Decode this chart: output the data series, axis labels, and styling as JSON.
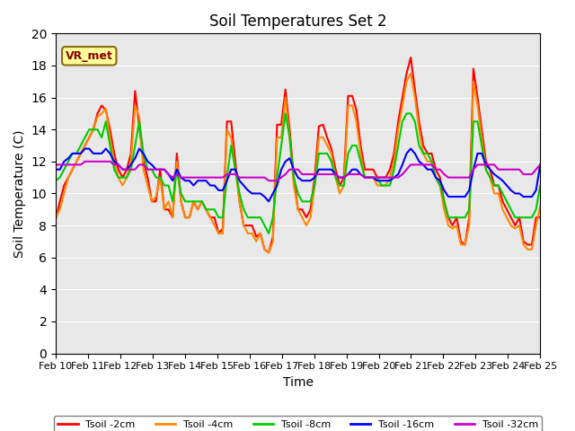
{
  "title": "Soil Temperatures Set 2",
  "xlabel": "Time",
  "ylabel": "Soil Temperature (C)",
  "annotation": "VR_met",
  "ylim": [
    0,
    20
  ],
  "yticks": [
    0,
    2,
    4,
    6,
    8,
    10,
    12,
    14,
    16,
    18,
    20
  ],
  "xtick_labels": [
    "Feb 10",
    "Feb 11",
    "Feb 12",
    "Feb 13",
    "Feb 14",
    "Feb 15",
    "Feb 16",
    "Feb 17",
    "Feb 18",
    "Feb 19",
    "Feb 20",
    "Feb 21",
    "Feb 22",
    "Feb 23",
    "Feb 24",
    "Feb 25"
  ],
  "background_color": "#e8e8e8",
  "series": {
    "Tsoil -2cm": {
      "color": "#ff0000",
      "lw": 1.5
    },
    "Tsoil -4cm": {
      "color": "#ff8800",
      "lw": 1.5
    },
    "Tsoil -8cm": {
      "color": "#00cc00",
      "lw": 1.5
    },
    "Tsoil -16cm": {
      "color": "#0000ff",
      "lw": 1.5
    },
    "Tsoil -32cm": {
      "color": "#cc00cc",
      "lw": 1.5
    }
  },
  "tsoil_2cm": [
    8.4,
    9.5,
    10.5,
    11.0,
    11.5,
    12.0,
    12.5,
    13.0,
    13.5,
    14.0,
    15.0,
    15.5,
    15.2,
    14.0,
    12.5,
    11.5,
    11.0,
    11.5,
    12.5,
    16.4,
    14.2,
    12.0,
    11.0,
    9.5,
    9.5,
    11.5,
    9.0,
    9.0,
    8.5,
    12.5,
    9.5,
    8.5,
    8.5,
    9.5,
    9.0,
    9.5,
    9.0,
    8.5,
    8.5,
    7.5,
    7.8,
    14.5,
    14.5,
    12.0,
    9.5,
    8.0,
    8.0,
    8.0,
    7.3,
    7.5,
    6.5,
    6.3,
    7.3,
    14.3,
    14.3,
    16.5,
    14.0,
    11.0,
    9.0,
    9.0,
    8.5,
    9.0,
    11.0,
    14.2,
    14.3,
    13.5,
    12.8,
    11.5,
    10.5,
    11.0,
    16.1,
    16.1,
    15.2,
    13.0,
    11.5,
    11.5,
    11.5,
    11.0,
    11.0,
    11.0,
    11.5,
    12.5,
    14.5,
    16.0,
    17.5,
    18.5,
    16.5,
    14.5,
    13.0,
    12.5,
    12.5,
    11.5,
    11.0,
    9.5,
    8.5,
    8.0,
    8.5,
    7.0,
    6.8,
    8.5,
    17.8,
    16.0,
    14.0,
    12.0,
    11.5,
    10.5,
    10.5,
    9.5,
    9.0,
    8.5,
    8.0,
    8.5,
    7.0,
    6.8,
    6.8,
    8.5,
    8.5
  ],
  "tsoil_4cm": [
    8.5,
    9.0,
    10.0,
    11.0,
    11.5,
    12.0,
    12.5,
    13.0,
    13.5,
    14.0,
    14.8,
    15.0,
    15.3,
    13.5,
    12.0,
    11.0,
    10.5,
    11.0,
    12.0,
    15.5,
    14.8,
    11.5,
    10.5,
    9.5,
    9.8,
    11.0,
    9.0,
    9.5,
    8.5,
    12.0,
    9.5,
    8.5,
    8.5,
    9.5,
    9.0,
    9.5,
    9.0,
    8.5,
    8.0,
    7.5,
    7.5,
    14.0,
    13.5,
    11.5,
    9.5,
    8.0,
    7.5,
    7.5,
    7.0,
    7.5,
    6.5,
    6.3,
    7.0,
    13.5,
    13.5,
    16.0,
    13.5,
    10.5,
    9.0,
    8.5,
    8.0,
    8.5,
    10.5,
    13.5,
    13.5,
    13.0,
    12.5,
    11.0,
    10.0,
    10.5,
    15.5,
    15.5,
    14.5,
    12.5,
    11.0,
    11.0,
    11.0,
    10.5,
    10.5,
    10.5,
    11.0,
    12.0,
    14.0,
    15.5,
    17.0,
    17.5,
    16.0,
    14.0,
    12.5,
    12.0,
    12.0,
    11.0,
    10.5,
    9.0,
    8.0,
    7.8,
    8.0,
    6.8,
    6.8,
    8.0,
    17.0,
    15.5,
    13.5,
    11.5,
    11.0,
    10.0,
    10.0,
    9.0,
    8.5,
    8.0,
    7.8,
    8.0,
    6.8,
    6.5,
    6.5,
    8.0,
    9.2
  ],
  "tsoil_8cm": [
    10.8,
    11.0,
    11.5,
    12.0,
    12.5,
    12.5,
    13.0,
    13.5,
    14.0,
    14.0,
    14.0,
    13.5,
    14.5,
    13.0,
    11.5,
    11.0,
    11.0,
    11.0,
    11.5,
    13.0,
    14.5,
    12.5,
    11.5,
    11.5,
    11.0,
    11.0,
    10.5,
    10.5,
    9.5,
    11.5,
    10.0,
    9.5,
    9.5,
    9.5,
    9.5,
    9.5,
    9.0,
    9.0,
    9.0,
    8.5,
    8.5,
    11.0,
    13.0,
    11.5,
    10.0,
    9.0,
    8.5,
    8.5,
    8.5,
    8.5,
    8.0,
    7.5,
    8.5,
    11.0,
    13.0,
    15.0,
    13.5,
    11.0,
    10.0,
    9.5,
    9.5,
    9.5,
    10.5,
    12.5,
    12.5,
    12.5,
    12.0,
    11.0,
    10.5,
    10.5,
    12.5,
    13.0,
    13.0,
    12.0,
    11.0,
    11.0,
    11.0,
    11.0,
    10.5,
    10.5,
    10.5,
    11.5,
    13.0,
    14.5,
    15.0,
    15.0,
    14.5,
    13.0,
    12.5,
    12.5,
    12.0,
    11.0,
    10.5,
    9.5,
    8.5,
    8.5,
    8.5,
    8.5,
    8.5,
    9.0,
    14.5,
    14.5,
    13.0,
    11.5,
    11.0,
    10.5,
    10.5,
    10.0,
    9.5,
    9.0,
    8.5,
    8.5,
    8.5,
    8.5,
    8.5,
    9.0,
    10.5
  ],
  "tsoil_16cm": [
    11.5,
    11.5,
    12.0,
    12.2,
    12.5,
    12.5,
    12.5,
    12.8,
    12.8,
    12.5,
    12.5,
    12.5,
    12.8,
    12.5,
    12.0,
    11.8,
    11.5,
    11.5,
    11.8,
    12.2,
    12.8,
    12.5,
    12.0,
    11.8,
    11.5,
    11.5,
    11.5,
    11.2,
    10.8,
    11.5,
    11.0,
    10.8,
    10.8,
    10.5,
    10.8,
    10.8,
    10.8,
    10.5,
    10.5,
    10.2,
    10.2,
    10.8,
    11.5,
    11.5,
    10.8,
    10.5,
    10.2,
    10.0,
    10.0,
    10.0,
    9.8,
    9.5,
    10.0,
    10.5,
    11.5,
    12.0,
    12.2,
    11.5,
    11.0,
    10.8,
    10.8,
    10.8,
    11.0,
    11.5,
    11.5,
    11.5,
    11.5,
    11.2,
    11.0,
    11.0,
    11.2,
    11.5,
    11.5,
    11.2,
    11.0,
    11.0,
    11.0,
    10.8,
    10.8,
    10.8,
    10.8,
    11.0,
    11.2,
    11.8,
    12.5,
    12.8,
    12.5,
    12.0,
    11.8,
    11.5,
    11.5,
    11.0,
    10.8,
    10.2,
    9.8,
    9.8,
    9.8,
    9.8,
    9.8,
    10.2,
    11.5,
    12.5,
    12.5,
    11.8,
    11.5,
    11.2,
    11.0,
    10.8,
    10.5,
    10.2,
    10.0,
    10.0,
    9.8,
    9.8,
    9.8,
    10.2,
    11.8
  ],
  "tsoil_32cm": [
    11.8,
    11.8,
    11.8,
    11.8,
    11.8,
    11.8,
    11.8,
    12.0,
    12.0,
    12.0,
    12.0,
    12.0,
    12.0,
    12.0,
    11.8,
    11.8,
    11.5,
    11.5,
    11.5,
    11.5,
    11.8,
    11.8,
    11.5,
    11.5,
    11.5,
    11.5,
    11.5,
    11.2,
    11.0,
    11.2,
    11.0,
    11.0,
    11.0,
    11.0,
    11.0,
    11.0,
    11.0,
    11.0,
    11.0,
    11.0,
    11.0,
    11.2,
    11.2,
    11.2,
    11.0,
    11.0,
    11.0,
    11.0,
    11.0,
    11.0,
    11.0,
    10.8,
    10.8,
    10.8,
    11.0,
    11.2,
    11.5,
    11.5,
    11.5,
    11.2,
    11.2,
    11.2,
    11.2,
    11.2,
    11.2,
    11.2,
    11.2,
    11.2,
    11.0,
    11.0,
    11.2,
    11.2,
    11.2,
    11.2,
    11.0,
    11.0,
    11.0,
    11.0,
    11.0,
    11.0,
    11.0,
    11.0,
    11.0,
    11.2,
    11.5,
    11.8,
    11.8,
    11.8,
    11.8,
    11.8,
    11.8,
    11.5,
    11.5,
    11.2,
    11.0,
    11.0,
    11.0,
    11.0,
    11.0,
    11.0,
    11.5,
    11.8,
    11.8,
    11.8,
    11.8,
    11.8,
    11.5,
    11.5,
    11.5,
    11.5,
    11.5,
    11.5,
    11.2,
    11.2,
    11.2,
    11.5,
    11.8
  ]
}
